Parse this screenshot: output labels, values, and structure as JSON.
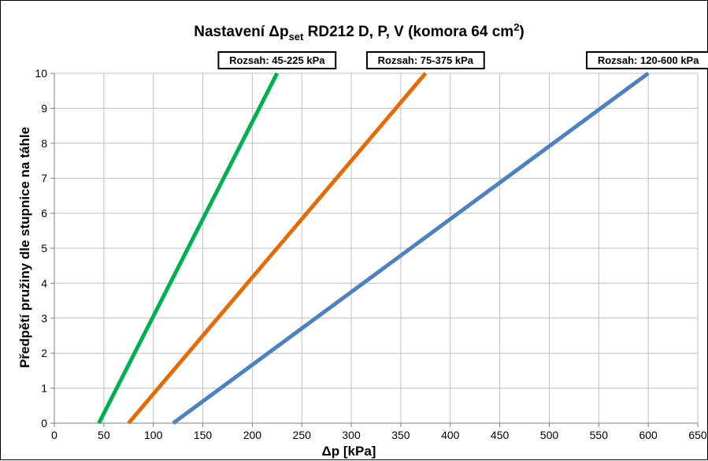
{
  "chart_data": {
    "type": "line",
    "title": {
      "main": "Nastavení Δp",
      "subscript": "set",
      "rest": " RD212 D, P, V (komora 64 cm",
      "superscript": "2",
      "end": ")"
    },
    "xlabel": "Δp [kPa]",
    "ylabel": "Předpětí pružiny dle stupnice na táhle",
    "xlim": [
      0,
      650
    ],
    "ylim": [
      0,
      10
    ],
    "x_ticks": [
      0,
      50,
      100,
      150,
      200,
      250,
      300,
      350,
      400,
      450,
      500,
      550,
      600,
      650
    ],
    "y_ticks": [
      0,
      1,
      2,
      3,
      4,
      5,
      6,
      7,
      8,
      9,
      10
    ],
    "grid": true,
    "series": [
      {
        "name": "Rozsah: 45-225 kPa",
        "color": "#00b050",
        "x": [
          45,
          225
        ],
        "y": [
          0,
          10
        ]
      },
      {
        "name": "Rozsah: 75-375 kPa",
        "color": "#e36c0a",
        "x": [
          75,
          375
        ],
        "y": [
          0,
          10
        ]
      },
      {
        "name": "Rozsah: 120-600 kPa",
        "color": "#4f81bd",
        "x": [
          120,
          600
        ],
        "y": [
          0,
          10
        ]
      }
    ]
  }
}
